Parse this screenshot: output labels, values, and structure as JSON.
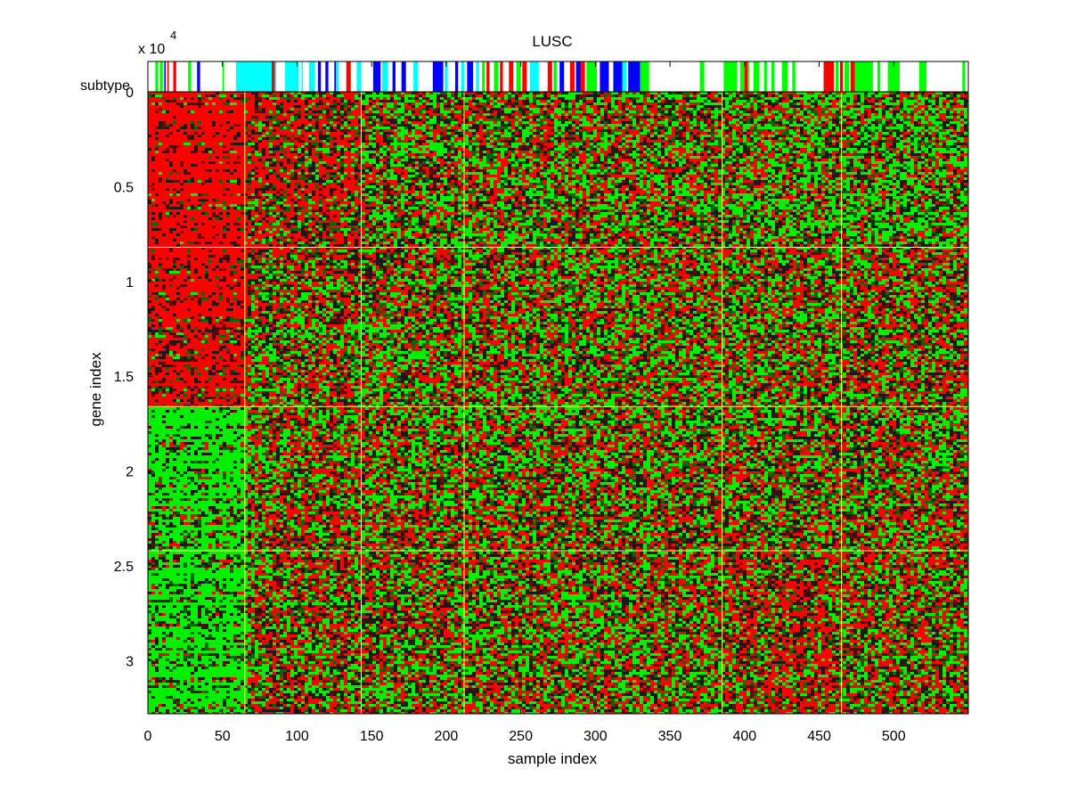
{
  "chart_data": {
    "type": "heatmap",
    "title": "LUSC",
    "xlabel": "sample index",
    "ylabel": "gene index",
    "y_exponent_label": "x 10",
    "y_exponent_power": "4",
    "subtype_label": "subtype",
    "x_range": [
      0,
      550
    ],
    "y_range": [
      0,
      3.28
    ],
    "y_scale_factor": 10000,
    "x_ticks": [
      0,
      50,
      100,
      150,
      200,
      250,
      300,
      350,
      400,
      450,
      500
    ],
    "x_tick_labels": [
      "0",
      "50",
      "100",
      "150",
      "200",
      "250",
      "300",
      "350",
      "400",
      "450",
      "500"
    ],
    "y_ticks": [
      0,
      0.5,
      1,
      1.5,
      2,
      2.5,
      3
    ],
    "y_tick_labels": [
      "0",
      "0.5",
      "1",
      "1.5",
      "2",
      "2.5",
      "3"
    ],
    "column_separators": [
      65,
      143,
      212,
      385,
      465
    ],
    "row_separators": [
      0.82,
      1.66,
      2.42
    ],
    "colors": {
      "high": "#ff0000",
      "low": "#00ee00",
      "mid": "#000000",
      "separator": "#ffff66",
      "subtype_colors": [
        "#00ff00",
        "#00ffff",
        "#0000ff",
        "#ff0000"
      ]
    },
    "subtype_segments": [
      {
        "from": 5,
        "to": 7,
        "color": "#00ff00"
      },
      {
        "from": 8,
        "to": 10,
        "color": "#00ff00"
      },
      {
        "from": 11,
        "to": 12,
        "color": "#0000ff"
      },
      {
        "from": 13,
        "to": 14,
        "color": "#ff0000"
      },
      {
        "from": 17,
        "to": 19,
        "color": "#ff0000"
      },
      {
        "from": 27,
        "to": 29,
        "color": "#00ff00"
      },
      {
        "from": 33,
        "to": 35,
        "color": "#0000ff"
      },
      {
        "from": 50,
        "to": 51,
        "color": "#00ff00"
      },
      {
        "from": 59,
        "to": 86,
        "color": "#00ffff"
      },
      {
        "from": 83,
        "to": 85,
        "color": "#ff0000"
      },
      {
        "from": 92,
        "to": 101,
        "color": "#00ffff"
      },
      {
        "from": 103,
        "to": 104,
        "color": "#00ffff"
      },
      {
        "from": 108,
        "to": 112,
        "color": "#00ffff"
      },
      {
        "from": 114,
        "to": 116,
        "color": "#0000ff"
      },
      {
        "from": 119,
        "to": 121,
        "color": "#0000ff"
      },
      {
        "from": 125,
        "to": 126,
        "color": "#0000ff"
      },
      {
        "from": 126,
        "to": 128,
        "color": "#00ffff"
      },
      {
        "from": 133,
        "to": 136,
        "color": "#ff0000"
      },
      {
        "from": 140,
        "to": 143,
        "color": "#00ffff"
      },
      {
        "from": 151,
        "to": 156,
        "color": "#0000ff"
      },
      {
        "from": 157,
        "to": 161,
        "color": "#00ffff"
      },
      {
        "from": 164,
        "to": 166,
        "color": "#0000ff"
      },
      {
        "from": 170,
        "to": 173,
        "color": "#0000ff"
      },
      {
        "from": 178,
        "to": 181,
        "color": "#00ffff"
      },
      {
        "from": 191,
        "to": 198,
        "color": "#0000ff"
      },
      {
        "from": 199,
        "to": 201,
        "color": "#00ffff"
      },
      {
        "from": 206,
        "to": 208,
        "color": "#0000ff"
      },
      {
        "from": 210,
        "to": 212,
        "color": "#00ffff"
      },
      {
        "from": 214,
        "to": 218,
        "color": "#0000ff"
      },
      {
        "from": 220,
        "to": 222,
        "color": "#00ffff"
      },
      {
        "from": 224,
        "to": 226,
        "color": "#00ff00"
      },
      {
        "from": 227,
        "to": 229,
        "color": "#ff0000"
      },
      {
        "from": 232,
        "to": 235,
        "color": "#00ff00"
      },
      {
        "from": 236,
        "to": 238,
        "color": "#ff0000"
      },
      {
        "from": 242,
        "to": 245,
        "color": "#ff0000"
      },
      {
        "from": 247,
        "to": 250,
        "color": "#00ff00"
      },
      {
        "from": 251,
        "to": 254,
        "color": "#ff0000"
      },
      {
        "from": 256,
        "to": 262,
        "color": "#00ffff"
      },
      {
        "from": 268,
        "to": 271,
        "color": "#ff0000"
      },
      {
        "from": 272,
        "to": 274,
        "color": "#00ff00"
      },
      {
        "from": 276,
        "to": 279,
        "color": "#0000ff"
      },
      {
        "from": 283,
        "to": 286,
        "color": "#ff0000"
      },
      {
        "from": 287,
        "to": 291,
        "color": "#0000ff"
      },
      {
        "from": 290,
        "to": 293,
        "color": "#ff0000"
      },
      {
        "from": 294,
        "to": 301,
        "color": "#00ff00"
      },
      {
        "from": 303,
        "to": 309,
        "color": "#0000ff"
      },
      {
        "from": 312,
        "to": 318,
        "color": "#0000ff"
      },
      {
        "from": 318,
        "to": 321,
        "color": "#00ffff"
      },
      {
        "from": 322,
        "to": 330,
        "color": "#0000ff"
      },
      {
        "from": 330,
        "to": 336,
        "color": "#00ff00"
      },
      {
        "from": 370,
        "to": 373,
        "color": "#00ff00"
      },
      {
        "from": 386,
        "to": 395,
        "color": "#00ff00"
      },
      {
        "from": 397,
        "to": 403,
        "color": "#00ff00"
      },
      {
        "from": 400,
        "to": 402,
        "color": "#ff0000"
      },
      {
        "from": 406,
        "to": 410,
        "color": "#00ff00"
      },
      {
        "from": 413,
        "to": 415,
        "color": "#00ff00"
      },
      {
        "from": 418,
        "to": 420,
        "color": "#00ff00"
      },
      {
        "from": 425,
        "to": 429,
        "color": "#00ff00"
      },
      {
        "from": 432,
        "to": 434,
        "color": "#00ff00"
      },
      {
        "from": 453,
        "to": 460,
        "color": "#ff0000"
      },
      {
        "from": 461,
        "to": 463,
        "color": "#00ff00"
      },
      {
        "from": 464,
        "to": 466,
        "color": "#ff0000"
      },
      {
        "from": 467,
        "to": 470,
        "color": "#00ff00"
      },
      {
        "from": 471,
        "to": 474,
        "color": "#ff0000"
      },
      {
        "from": 474,
        "to": 486,
        "color": "#00ff00"
      },
      {
        "from": 489,
        "to": 491,
        "color": "#00ff00"
      },
      {
        "from": 496,
        "to": 504,
        "color": "#00ff00"
      },
      {
        "from": 517,
        "to": 522,
        "color": "#00ff00"
      },
      {
        "from": 546,
        "to": 548,
        "color": "#00ff00"
      }
    ],
    "grid": false,
    "legend": "none"
  }
}
